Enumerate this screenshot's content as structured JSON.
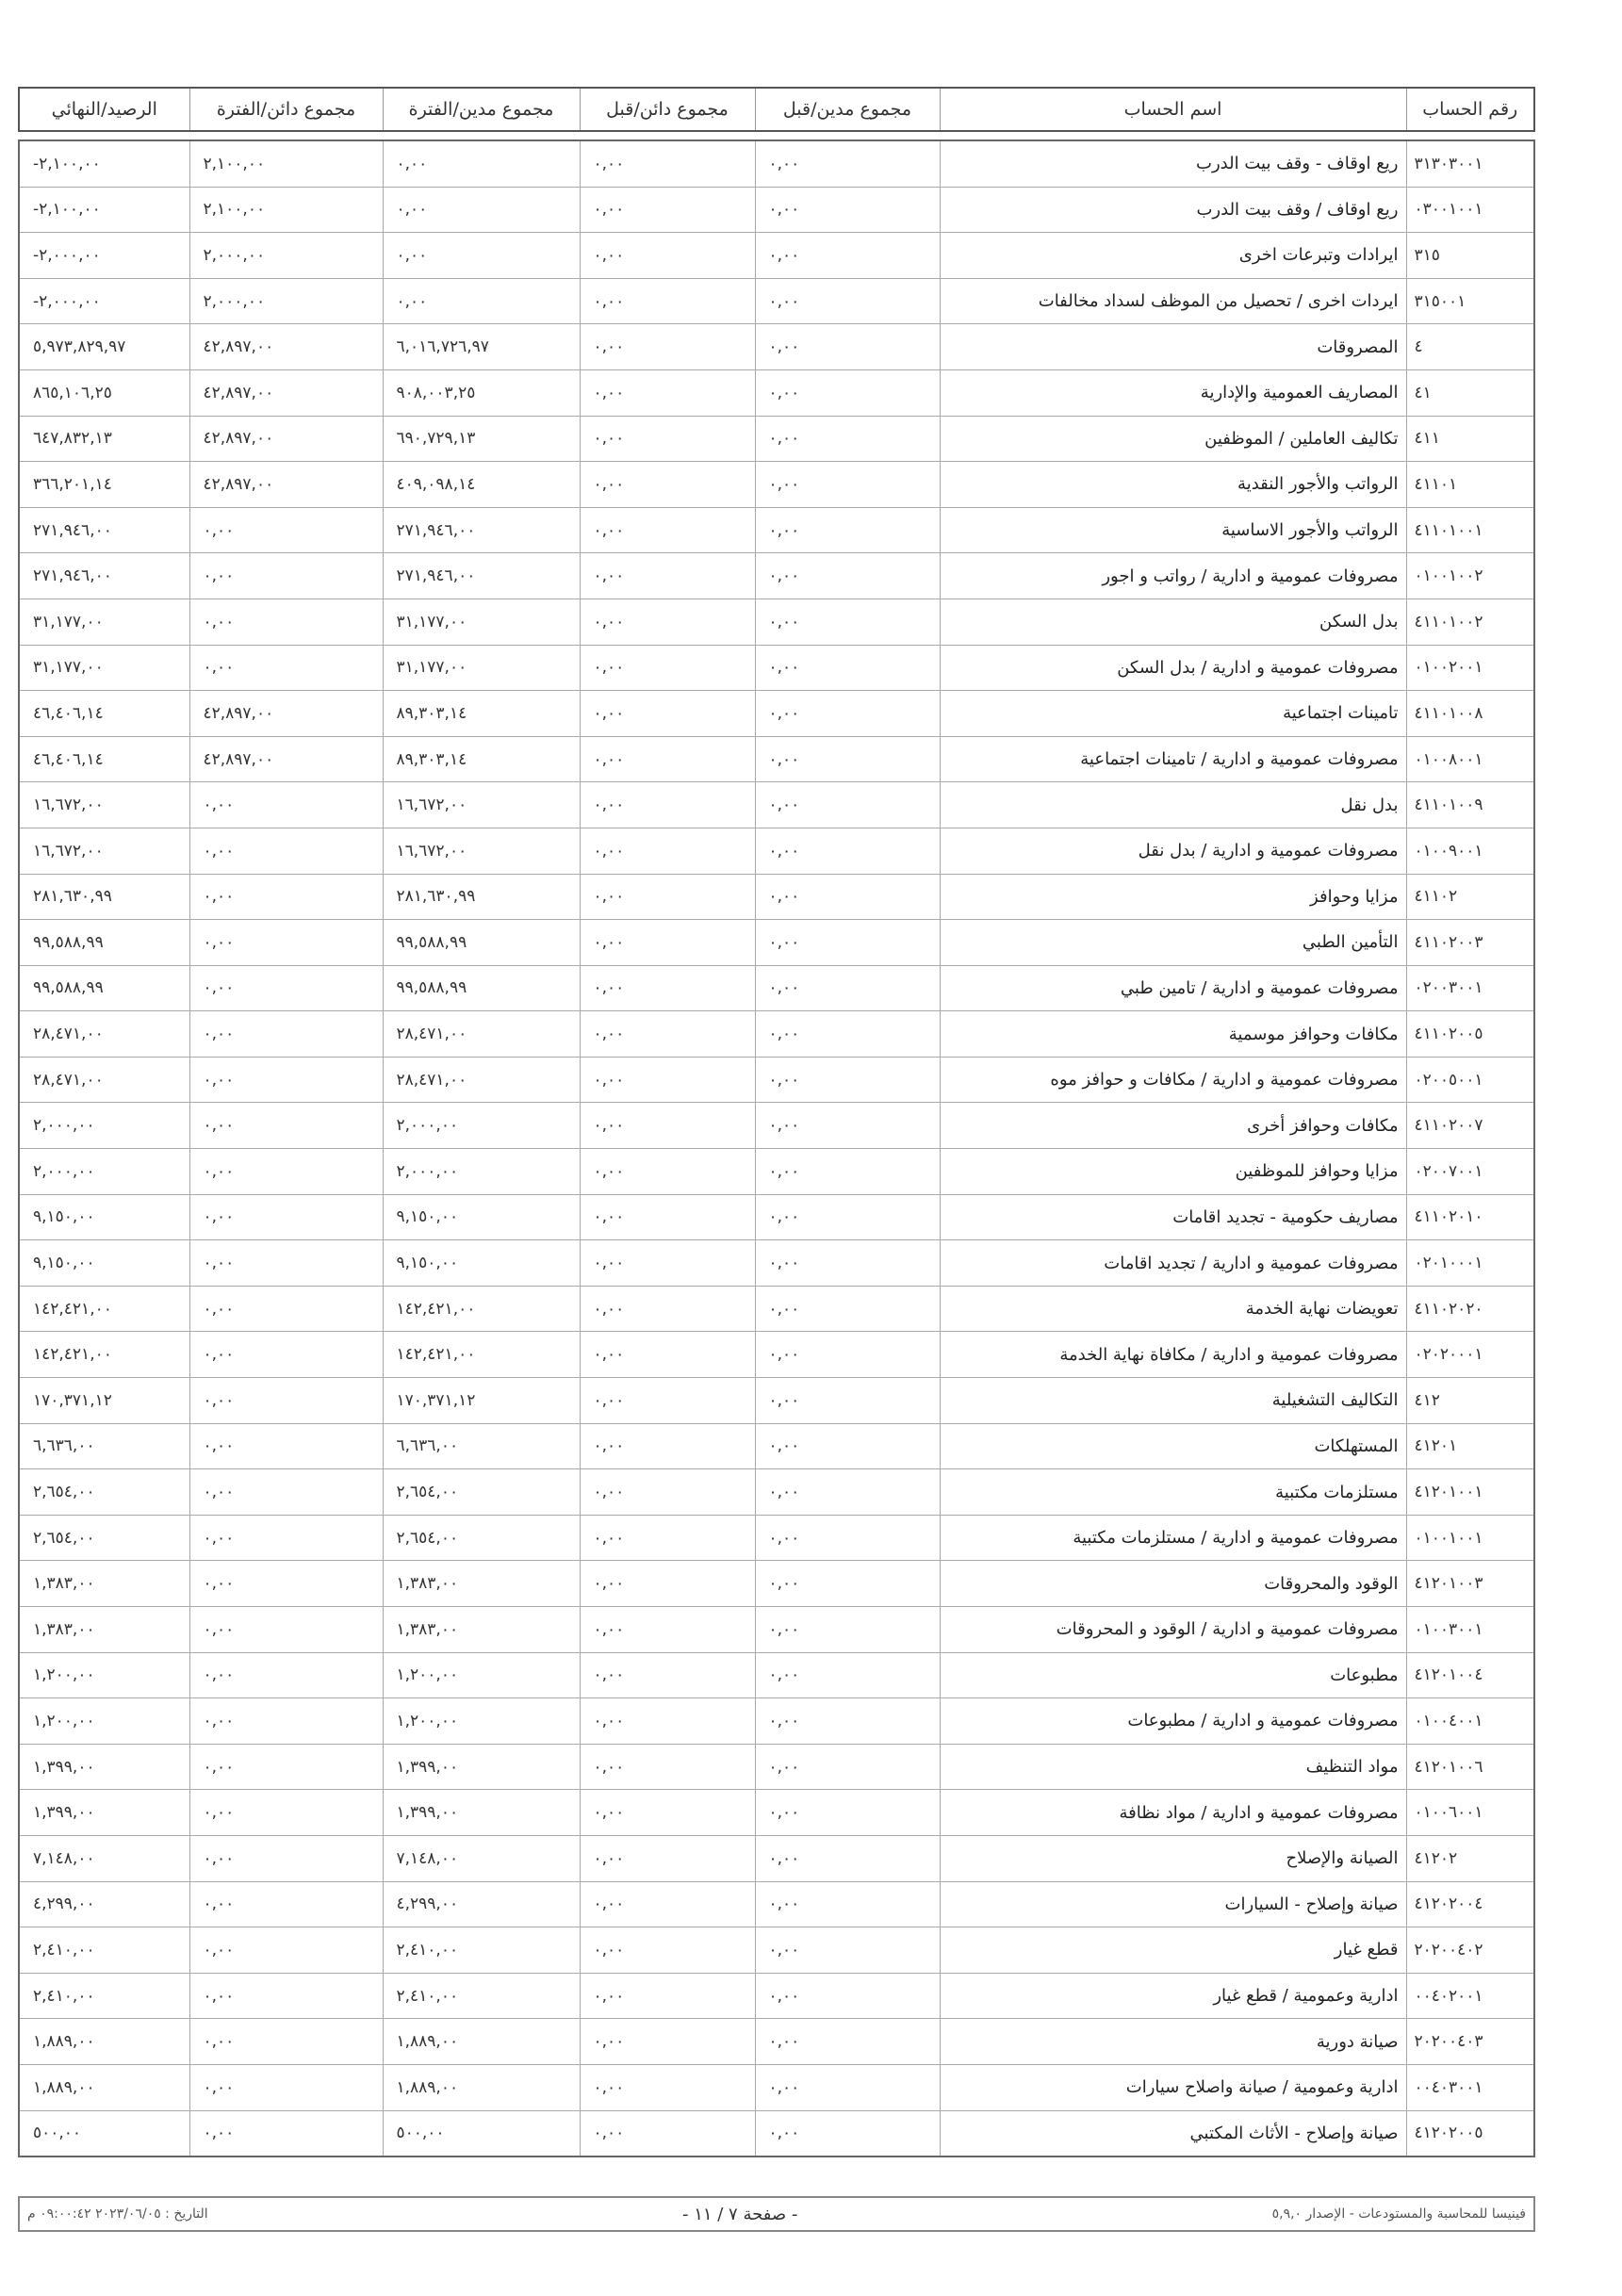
{
  "columns": [
    "رقم الحساب",
    "اسم الحساب",
    "مجموع مدين/قبل",
    "مجموع دائن/قبل",
    "مجموع مدين/الفترة",
    "مجموع دائن/الفترة",
    "الرصيد/النهائي"
  ],
  "rows": [
    [
      "٣١٣٠٣٠٠١",
      "ريع اوقاف - وقف بيت الدرب",
      "٠,٠٠",
      "٠,٠٠",
      "٠,٠٠",
      "٢,١٠٠,٠٠",
      "-٢,١٠٠,٠٠"
    ],
    [
      "٠٣٠٠١٠٠١",
      "ريع اوقاف / وقف بيت الدرب",
      "٠,٠٠",
      "٠,٠٠",
      "٠,٠٠",
      "٢,١٠٠,٠٠",
      "-٢,١٠٠,٠٠"
    ],
    [
      "٣١٥",
      "ايرادات وتبرعات اخرى",
      "٠,٠٠",
      "٠,٠٠",
      "٠,٠٠",
      "٢,٠٠٠,٠٠",
      "-٢,٠٠٠,٠٠"
    ],
    [
      "٣١٥٠٠١",
      "ايردات اخرى / تحصيل من الموظف لسداد مخالفات",
      "٠,٠٠",
      "٠,٠٠",
      "٠,٠٠",
      "٢,٠٠٠,٠٠",
      "-٢,٠٠٠,٠٠"
    ],
    [
      "٤",
      "المصروقات",
      "٠,٠٠",
      "٠,٠٠",
      "٦,٠١٦,٧٢٦,٩٧",
      "٤٢,٨٩٧,٠٠",
      "٥,٩٧٣,٨٢٩,٩٧"
    ],
    [
      "٤١",
      "المصاريف العمومية والإدارية",
      "٠,٠٠",
      "٠,٠٠",
      "٩٠٨,٠٠٣,٢٥",
      "٤٢,٨٩٧,٠٠",
      "٨٦٥,١٠٦,٢٥"
    ],
    [
      "٤١١",
      "تكاليف العاملين / الموظفين",
      "٠,٠٠",
      "٠,٠٠",
      "٦٩٠,٧٢٩,١٣",
      "٤٢,٨٩٧,٠٠",
      "٦٤٧,٨٣٢,١٣"
    ],
    [
      "٤١١٠١",
      "الرواتب والأجور النقدية",
      "٠,٠٠",
      "٠,٠٠",
      "٤٠٩,٠٩٨,١٤",
      "٤٢,٨٩٧,٠٠",
      "٣٦٦,٢٠١,١٤"
    ],
    [
      "٤١١٠١٠٠١",
      "الرواتب والأجور الاساسية",
      "٠,٠٠",
      "٠,٠٠",
      "٢٧١,٩٤٦,٠٠",
      "٠,٠٠",
      "٢٧١,٩٤٦,٠٠"
    ],
    [
      "٠١٠٠١٠٠٢",
      "مصروفات عمومية و ادارية / رواتب و اجور",
      "٠,٠٠",
      "٠,٠٠",
      "٢٧١,٩٤٦,٠٠",
      "٠,٠٠",
      "٢٧١,٩٤٦,٠٠"
    ],
    [
      "٤١١٠١٠٠٢",
      "بدل السكن",
      "٠,٠٠",
      "٠,٠٠",
      "٣١,١٧٧,٠٠",
      "٠,٠٠",
      "٣١,١٧٧,٠٠"
    ],
    [
      "٠١٠٠٢٠٠١",
      "مصروفات عمومية و ادارية / بدل السكن",
      "٠,٠٠",
      "٠,٠٠",
      "٣١,١٧٧,٠٠",
      "٠,٠٠",
      "٣١,١٧٧,٠٠"
    ],
    [
      "٤١١٠١٠٠٨",
      "تامينات اجتماعية",
      "٠,٠٠",
      "٠,٠٠",
      "٨٩,٣٠٣,١٤",
      "٤٢,٨٩٧,٠٠",
      "٤٦,٤٠٦,١٤"
    ],
    [
      "٠١٠٠٨٠٠١",
      "مصروفات عمومية و ادارية / تامينات اجتماعية",
      "٠,٠٠",
      "٠,٠٠",
      "٨٩,٣٠٣,١٤",
      "٤٢,٨٩٧,٠٠",
      "٤٦,٤٠٦,١٤"
    ],
    [
      "٤١١٠١٠٠٩",
      "بدل نقل",
      "٠,٠٠",
      "٠,٠٠",
      "١٦,٦٧٢,٠٠",
      "٠,٠٠",
      "١٦,٦٧٢,٠٠"
    ],
    [
      "٠١٠٠٩٠٠١",
      "مصروفات عمومية و ادارية / بدل نقل",
      "٠,٠٠",
      "٠,٠٠",
      "١٦,٦٧٢,٠٠",
      "٠,٠٠",
      "١٦,٦٧٢,٠٠"
    ],
    [
      "٤١١٠٢",
      "مزايا وحوافز",
      "٠,٠٠",
      "٠,٠٠",
      "٢٨١,٦٣٠,٩٩",
      "٠,٠٠",
      "٢٨١,٦٣٠,٩٩"
    ],
    [
      "٤١١٠٢٠٠٣",
      "التأمين الطبي",
      "٠,٠٠",
      "٠,٠٠",
      "٩٩,٥٨٨,٩٩",
      "٠,٠٠",
      "٩٩,٥٨٨,٩٩"
    ],
    [
      "٠٢٠٠٣٠٠١",
      "مصروفات عمومية و ادارية / تامين طبي",
      "٠,٠٠",
      "٠,٠٠",
      "٩٩,٥٨٨,٩٩",
      "٠,٠٠",
      "٩٩,٥٨٨,٩٩"
    ],
    [
      "٤١١٠٢٠٠٥",
      "مكافات وحوافز موسمية",
      "٠,٠٠",
      "٠,٠٠",
      "٢٨,٤٧١,٠٠",
      "٠,٠٠",
      "٢٨,٤٧١,٠٠"
    ],
    [
      "٠٢٠٠٥٠٠١",
      "مصروفات عمومية و ادارية / مكافات و حوافز موه",
      "٠,٠٠",
      "٠,٠٠",
      "٢٨,٤٧١,٠٠",
      "٠,٠٠",
      "٢٨,٤٧١,٠٠"
    ],
    [
      "٤١١٠٢٠٠٧",
      "مكافات وحوافز أخرى",
      "٠,٠٠",
      "٠,٠٠",
      "٢,٠٠٠,٠٠",
      "٠,٠٠",
      "٢,٠٠٠,٠٠"
    ],
    [
      "٠٢٠٠٧٠٠١",
      "مزايا وحوافز للموظفين",
      "٠,٠٠",
      "٠,٠٠",
      "٢,٠٠٠,٠٠",
      "٠,٠٠",
      "٢,٠٠٠,٠٠"
    ],
    [
      "٤١١٠٢٠١٠",
      "مصاريف حكومية - تجديد اقامات",
      "٠,٠٠",
      "٠,٠٠",
      "٩,١٥٠,٠٠",
      "٠,٠٠",
      "٩,١٥٠,٠٠"
    ],
    [
      "٠٢٠١٠٠٠١",
      "مصروفات عمومية و ادارية / تجديد اقامات",
      "٠,٠٠",
      "٠,٠٠",
      "٩,١٥٠,٠٠",
      "٠,٠٠",
      "٩,١٥٠,٠٠"
    ],
    [
      "٤١١٠٢٠٢٠",
      "تعويضات نهاية الخدمة",
      "٠,٠٠",
      "٠,٠٠",
      "١٤٢,٤٢١,٠٠",
      "٠,٠٠",
      "١٤٢,٤٢١,٠٠"
    ],
    [
      "٠٢٠٢٠٠٠١",
      "مصروفات عمومية و ادارية / مكافاة نهاية الخدمة",
      "٠,٠٠",
      "٠,٠٠",
      "١٤٢,٤٢١,٠٠",
      "٠,٠٠",
      "١٤٢,٤٢١,٠٠"
    ],
    [
      "٤١٢",
      "التكاليف التشغيلية",
      "٠,٠٠",
      "٠,٠٠",
      "١٧٠,٣٧١,١٢",
      "٠,٠٠",
      "١٧٠,٣٧١,١٢"
    ],
    [
      "٤١٢٠١",
      "المستهلكات",
      "٠,٠٠",
      "٠,٠٠",
      "٦,٦٣٦,٠٠",
      "٠,٠٠",
      "٦,٦٣٦,٠٠"
    ],
    [
      "٤١٢٠١٠٠١",
      "مستلزمات مكتبية",
      "٠,٠٠",
      "٠,٠٠",
      "٢,٦٥٤,٠٠",
      "٠,٠٠",
      "٢,٦٥٤,٠٠"
    ],
    [
      "٠١٠٠١٠٠١",
      "مصروفات عمومية و ادارية / مستلزمات مكتبية",
      "٠,٠٠",
      "٠,٠٠",
      "٢,٦٥٤,٠٠",
      "٠,٠٠",
      "٢,٦٥٤,٠٠"
    ],
    [
      "٤١٢٠١٠٠٣",
      "الوقود والمحروقات",
      "٠,٠٠",
      "٠,٠٠",
      "١,٣٨٣,٠٠",
      "٠,٠٠",
      "١,٣٨٣,٠٠"
    ],
    [
      "٠١٠٠٣٠٠١",
      "مصروفات عمومية و ادارية / الوقود و المحروقات",
      "٠,٠٠",
      "٠,٠٠",
      "١,٣٨٣,٠٠",
      "٠,٠٠",
      "١,٣٨٣,٠٠"
    ],
    [
      "٤١٢٠١٠٠٤",
      "مطبوعات",
      "٠,٠٠",
      "٠,٠٠",
      "١,٢٠٠,٠٠",
      "٠,٠٠",
      "١,٢٠٠,٠٠"
    ],
    [
      "٠١٠٠٤٠٠١",
      "مصروفات عمومية و ادارية / مطبوعات",
      "٠,٠٠",
      "٠,٠٠",
      "١,٢٠٠,٠٠",
      "٠,٠٠",
      "١,٢٠٠,٠٠"
    ],
    [
      "٤١٢٠١٠٠٦",
      "مواد التنظيف",
      "٠,٠٠",
      "٠,٠٠",
      "١,٣٩٩,٠٠",
      "٠,٠٠",
      "١,٣٩٩,٠٠"
    ],
    [
      "٠١٠٠٦٠٠١",
      "مصروفات عمومية و ادارية / مواد نظافة",
      "٠,٠٠",
      "٠,٠٠",
      "١,٣٩٩,٠٠",
      "٠,٠٠",
      "١,٣٩٩,٠٠"
    ],
    [
      "٤١٢٠٢",
      "الصيانة والإصلاح",
      "٠,٠٠",
      "٠,٠٠",
      "٧,١٤٨,٠٠",
      "٠,٠٠",
      "٧,١٤٨,٠٠"
    ],
    [
      "٤١٢٠٢٠٠٤",
      "صيانة وإصلاح - السيارات",
      "٠,٠٠",
      "٠,٠٠",
      "٤,٢٩٩,٠٠",
      "٠,٠٠",
      "٤,٢٩٩,٠٠"
    ],
    [
      "٢٠٢٠٠٤٠٢",
      "قطع غيار",
      "٠,٠٠",
      "٠,٠٠",
      "٢,٤١٠,٠٠",
      "٠,٠٠",
      "٢,٤١٠,٠٠"
    ],
    [
      "٠٠٤٠٢٠٠١",
      "ادارية وعمومية / قطع غيار",
      "٠,٠٠",
      "٠,٠٠",
      "٢,٤١٠,٠٠",
      "٠,٠٠",
      "٢,٤١٠,٠٠"
    ],
    [
      "٢٠٢٠٠٤٠٣",
      "صيانة دورية",
      "٠,٠٠",
      "٠,٠٠",
      "١,٨٨٩,٠٠",
      "٠,٠٠",
      "١,٨٨٩,٠٠"
    ],
    [
      "٠٠٤٠٣٠٠١",
      "ادارية وعمومية / صيانة واصلاح سيارات",
      "٠,٠٠",
      "٠,٠٠",
      "١,٨٨٩,٠٠",
      "٠,٠٠",
      "١,٨٨٩,٠٠"
    ],
    [
      "٤١٢٠٢٠٠٥",
      "صيانة وإصلاح - الأثاث المكتبي",
      "٠,٠٠",
      "٠,٠٠",
      "٥٠٠,٠٠",
      "٠,٠٠",
      "٥٠٠,٠٠"
    ]
  ],
  "footer": {
    "software": "فينيسا للمحاسبة والمستودعات - الإصدار ٥,٩,٠",
    "page": "- صفحة ٧ / ١١ -",
    "date": "التاريخ : ٢٠٢٣/٠٦/٠٥ ٠٩:٠٠:٤٢ م"
  }
}
